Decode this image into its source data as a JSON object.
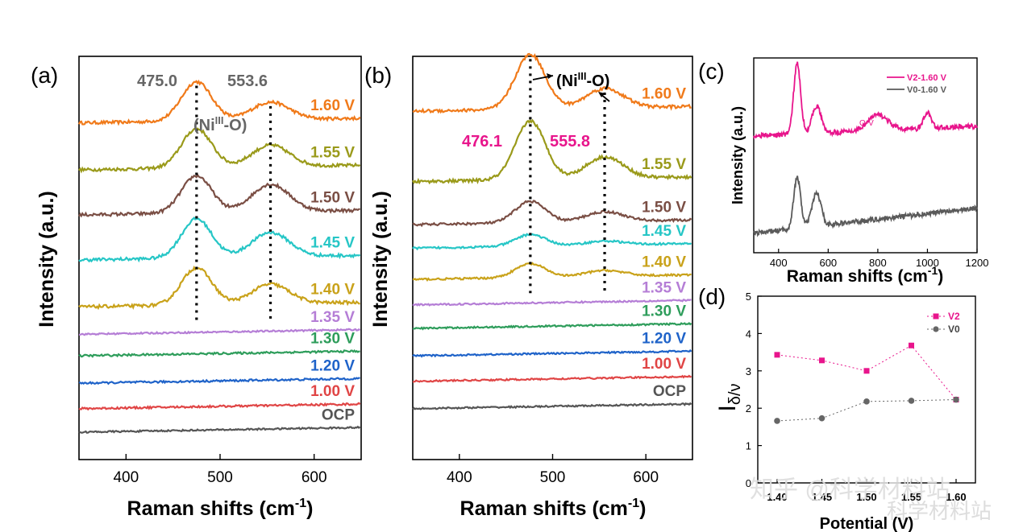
{
  "panels": {
    "a": {
      "letter": "(a)",
      "xlabel": "Raman shifts (cm",
      "xlabel_sup": "-1",
      "xlabel_end": ")",
      "ylabel": "Intensity (a.u.)",
      "xticks": [
        "400",
        "500",
        "600"
      ],
      "peak_labels": [
        "475.0",
        "553.6"
      ],
      "assignment": "(Ni",
      "assignment_sup": "III",
      "assignment_end": "-O)"
    },
    "b": {
      "letter": "(b)",
      "xlabel": "Raman shifts (cm",
      "xlabel_sup": "-1",
      "xlabel_end": ")",
      "ylabel": "Intensity (a.u.)",
      "xticks": [
        "400",
        "500",
        "600"
      ],
      "peak_labels": [
        "476.1",
        "555.8"
      ],
      "assignment": "(Ni",
      "assignment_sup": "III",
      "assignment_end": "-O)"
    },
    "c": {
      "letter": "(c)",
      "xlabel": "Raman shifts (cm",
      "xlabel_sup": "-1",
      "xlabel_end": ")",
      "ylabel": "Intensity (a.u.)",
      "xticks": [
        "400",
        "600",
        "800",
        "1000",
        "1200"
      ],
      "annotation": "O-V"
    },
    "d": {
      "letter": "(d)",
      "ylabel": "I",
      "ylabel_sub": "δ/ν",
      "xlabel": "Potential (V)",
      "yticks": [
        "0",
        "1",
        "2",
        "3",
        "4",
        "5"
      ],
      "xticks": [
        "1.40",
        "1.45",
        "1.50",
        "1.55",
        "1.60"
      ]
    }
  },
  "watermark": {
    "line1": "知乎 @科学材料站",
    "line2": "科学材料站"
  },
  "chart_data": [
    {
      "id": "a",
      "type": "line",
      "title": "",
      "xlabel": "Raman shifts (cm-1)",
      "ylabel": "Intensity (a.u.)",
      "xlim": [
        350,
        650
      ],
      "yticks_shown": false,
      "peaks_cm": [
        475.0,
        553.6
      ],
      "series": [
        {
          "name": "1.60 V",
          "color": "#f07a1a",
          "baseline": 8.9,
          "peaks": [
            1.0,
            0.45
          ],
          "noise": 0.08
        },
        {
          "name": "1.55 V",
          "color": "#9a9a1a",
          "baseline": 7.7,
          "peaks": [
            1.0,
            0.55
          ],
          "noise": 0.08
        },
        {
          "name": "1.50 V",
          "color": "#7a4e44",
          "baseline": 6.55,
          "peaks": [
            0.95,
            0.7
          ],
          "noise": 0.08
        },
        {
          "name": "1.45 V",
          "color": "#26c6c6",
          "baseline": 5.4,
          "peaks": [
            1.0,
            0.62
          ],
          "noise": 0.08
        },
        {
          "name": "1.40 V",
          "color": "#c9a21a",
          "baseline": 4.2,
          "peaks": [
            0.95,
            0.5
          ],
          "noise": 0.08
        },
        {
          "name": "1.35 V",
          "color": "#b57ed6",
          "baseline": 3.5,
          "peaks": [
            0,
            0
          ],
          "noise": 0.04
        },
        {
          "name": "1.30 V",
          "color": "#2e9d5b",
          "baseline": 2.95,
          "peaks": [
            0,
            0
          ],
          "noise": 0.05
        },
        {
          "name": "1.20 V",
          "color": "#1f63c9",
          "baseline": 2.25,
          "peaks": [
            0,
            0
          ],
          "noise": 0.05
        },
        {
          "name": "1.00 V",
          "color": "#e04545",
          "baseline": 1.6,
          "peaks": [
            0,
            0
          ],
          "noise": 0.05
        },
        {
          "name": "OCP",
          "color": "#555555",
          "baseline": 1.0,
          "peaks": [
            0,
            0
          ],
          "noise": 0.04
        }
      ]
    },
    {
      "id": "b",
      "type": "line",
      "title": "",
      "xlabel": "Raman shifts (cm-1)",
      "ylabel": "Intensity (a.u.)",
      "xlim": [
        350,
        650
      ],
      "yticks_shown": false,
      "peaks_cm": [
        476.1,
        555.8
      ],
      "series": [
        {
          "name": "1.60 V",
          "color": "#f07a1a",
          "baseline": 9.2,
          "peaks": [
            1.4,
            0.5
          ],
          "noise": 0.08
        },
        {
          "name": "1.55 V",
          "color": "#9a9a1a",
          "baseline": 7.4,
          "peaks": [
            1.5,
            0.55
          ],
          "noise": 0.08
        },
        {
          "name": "1.50 V",
          "color": "#7a4e44",
          "baseline": 6.3,
          "peaks": [
            0.55,
            0.25
          ],
          "noise": 0.06
        },
        {
          "name": "1.45 V",
          "color": "#26c6c6",
          "baseline": 5.7,
          "peaks": [
            0.3,
            0.1
          ],
          "noise": 0.05
        },
        {
          "name": "1.40 V",
          "color": "#c9a21a",
          "baseline": 4.9,
          "peaks": [
            0.35,
            0.15
          ],
          "noise": 0.05
        },
        {
          "name": "1.35 V",
          "color": "#b57ed6",
          "baseline": 4.25,
          "peaks": [
            0,
            0
          ],
          "noise": 0.04
        },
        {
          "name": "1.30 V",
          "color": "#2e9d5b",
          "baseline": 3.65,
          "peaks": [
            0,
            0
          ],
          "noise": 0.04
        },
        {
          "name": "1.20 V",
          "color": "#1f63c9",
          "baseline": 2.95,
          "peaks": [
            0,
            0
          ],
          "noise": 0.04
        },
        {
          "name": "1.00 V",
          "color": "#e04545",
          "baseline": 2.3,
          "peaks": [
            0,
            0
          ],
          "noise": 0.04
        },
        {
          "name": "OCP",
          "color": "#555555",
          "baseline": 1.6,
          "peaks": [
            0,
            0
          ],
          "noise": 0.04
        }
      ]
    },
    {
      "id": "c",
      "type": "line",
      "title": "",
      "xlabel": "Raman shifts (cm-1)",
      "ylabel": "Intensity (a.u.)",
      "xlim": [
        300,
        1200
      ],
      "yticks_shown": false,
      "legend_position": "top-right",
      "series": [
        {
          "name": "V2-1.60 V",
          "color": "#e8158c"
        },
        {
          "name": "V0-1.60 V",
          "color": "#5a5a5a"
        }
      ]
    },
    {
      "id": "d",
      "type": "scatter",
      "title": "",
      "xlabel": "Potential (V)",
      "ylabel": "Iδ/ν",
      "ylim": [
        0,
        5
      ],
      "categories": [
        "1.40",
        "1.45",
        "1.50",
        "1.55",
        "1.60"
      ],
      "legend_position": "top-right",
      "series": [
        {
          "name": "V2",
          "color": "#e8158c",
          "marker": "square",
          "values": [
            3.43,
            3.28,
            3.0,
            3.68,
            2.23
          ]
        },
        {
          "name": "V0",
          "color": "#666666",
          "marker": "circle",
          "values": [
            1.66,
            1.73,
            2.18,
            2.2,
            2.23
          ]
        }
      ]
    }
  ]
}
